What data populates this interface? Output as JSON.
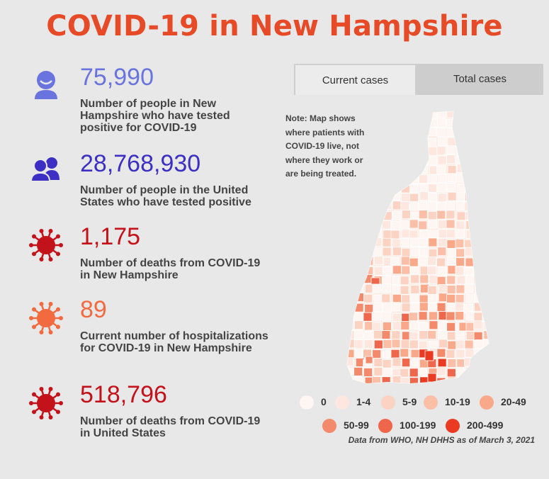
{
  "title": "COVID-19 in New Hampshire",
  "stats": [
    {
      "value": "75,990",
      "desc": "Number of people in New Hampshire who have tested positive for COVID-19",
      "icon": "person-icon",
      "color": "#6a74df"
    },
    {
      "value": "28,768,930",
      "desc": "Number of people in the United States who have tested positive",
      "icon": "people-icon",
      "color": "#3d2fc4"
    },
    {
      "value": "1,175",
      "desc": "Number of deaths from COVID-19 in New Hampshire",
      "icon": "virus-icon",
      "color": "#c4121a"
    },
    {
      "value": "89",
      "desc": "Current number of hospitalizations for COVID-19 in New Hampshire",
      "icon": "virus-icon",
      "color": "#f26a3f"
    },
    {
      "value": "518,796",
      "desc": "Number of deaths from COVID-19 in United States",
      "icon": "virus-icon",
      "color": "#c4121a"
    }
  ],
  "tabs": {
    "current": "Current cases",
    "total": "Total cases"
  },
  "map_note": "Note: Map shows where patients with COVID-19 live, not where they work or are being treated.",
  "legend": [
    {
      "label": "0",
      "color": "#fdf6f2"
    },
    {
      "label": "1-4",
      "color": "#fde7df"
    },
    {
      "label": "5-9",
      "color": "#fcd3c2"
    },
    {
      "label": "10-19",
      "color": "#fbbea7"
    },
    {
      "label": "20-49",
      "color": "#f9a88a"
    },
    {
      "label": "50-99",
      "color": "#f48a6c"
    },
    {
      "label": "100-199",
      "color": "#ee664b"
    },
    {
      "label": "200-499",
      "color": "#ea3b22"
    }
  ],
  "source": "Data from WHO, NH DHHS as of March 3, 2021"
}
